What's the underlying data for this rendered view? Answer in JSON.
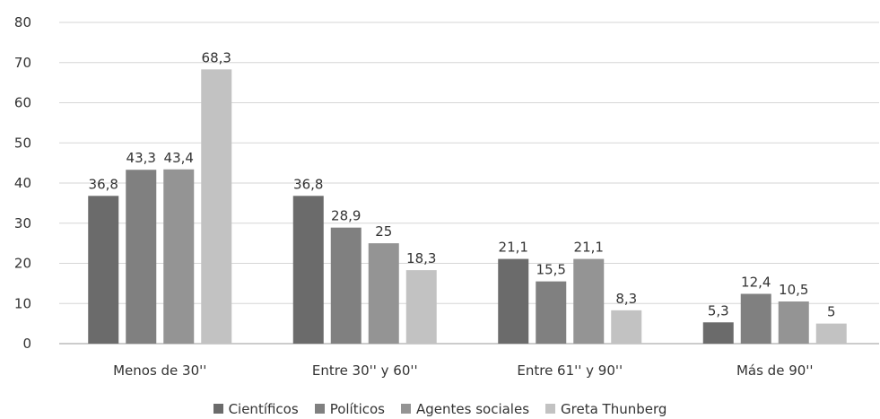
{
  "chart_data": {
    "type": "bar",
    "categories": [
      "Menos de 30''",
      "Entre 30'' y 60''",
      "Entre 61'' y 90''",
      "Más de 90''"
    ],
    "series": [
      {
        "name": "Científicos",
        "values": [
          36.8,
          36.8,
          21.1,
          5.3
        ],
        "labels": [
          "36,8",
          "36,8",
          "21,1",
          "5,3"
        ],
        "color": "#6b6b6b"
      },
      {
        "name": "Políticos",
        "values": [
          43.3,
          28.9,
          15.5,
          12.4
        ],
        "labels": [
          "43,3",
          "28,9",
          "15,5",
          "12,4"
        ],
        "color": "#808080"
      },
      {
        "name": "Agentes sociales",
        "values": [
          43.4,
          25,
          21.1,
          10.5
        ],
        "labels": [
          "43,4",
          "25",
          "21,1",
          "10,5"
        ],
        "color": "#949494"
      },
      {
        "name": "Greta Thunberg",
        "values": [
          68.3,
          18.3,
          8.3,
          5
        ],
        "labels": [
          "68,3",
          "18,3",
          "8,3",
          "5"
        ],
        "color": "#c2c2c2"
      }
    ],
    "yticks": [
      "0",
      "10",
      "20",
      "30",
      "40",
      "50",
      "60",
      "70",
      "80"
    ],
    "ylim": [
      0,
      80
    ],
    "grid": true,
    "legend": "bottom",
    "title": "",
    "xlabel": "",
    "ylabel": ""
  }
}
